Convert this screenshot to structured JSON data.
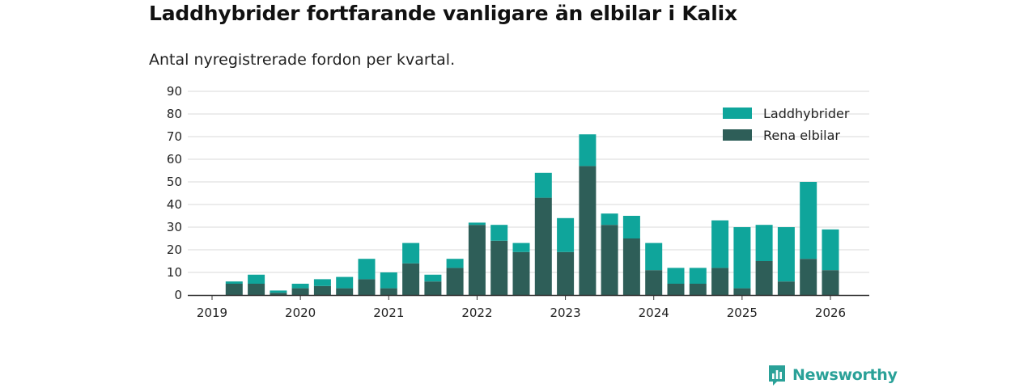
{
  "chart_data": {
    "type": "bar",
    "stacked": true,
    "title": "Laddhybrider fortfarande vanligare än elbilar i Kalix",
    "subtitle": "Antal nyregistrerade fordon per kvartal.",
    "ylim": [
      0,
      90
    ],
    "yticks": [
      0,
      10,
      20,
      30,
      40,
      50,
      60,
      70,
      80,
      90
    ],
    "xticks": [
      "2019",
      "2020",
      "2021",
      "2022",
      "2023",
      "2024",
      "2025",
      "2026"
    ],
    "x": [
      "2019-Q2",
      "2019-Q3",
      "2019-Q4",
      "2020-Q1",
      "2020-Q2",
      "2020-Q3",
      "2020-Q4",
      "2021-Q1",
      "2021-Q2",
      "2021-Q3",
      "2021-Q4",
      "2022-Q1",
      "2022-Q2",
      "2022-Q3",
      "2022-Q4",
      "2023-Q1",
      "2023-Q2",
      "2023-Q3",
      "2023-Q4",
      "2024-Q1",
      "2024-Q2",
      "2024-Q3",
      "2024-Q4",
      "2025-Q1",
      "2025-Q2",
      "2025-Q3",
      "2025-Q4",
      "2026-Q1"
    ],
    "series": [
      {
        "name": "Rena elbilar",
        "color": "#2e5e58",
        "values": [
          5,
          5,
          1,
          3,
          4,
          3,
          7,
          3,
          14,
          6,
          12,
          31,
          24,
          19,
          43,
          19,
          57,
          31,
          25,
          11,
          5,
          5,
          12,
          3,
          15,
          6,
          16,
          11
        ]
      },
      {
        "name": "Laddhybrider",
        "color": "#0fa59b",
        "values": [
          1,
          4,
          1,
          2,
          3,
          5,
          9,
          7,
          9,
          3,
          4,
          1,
          7,
          4,
          11,
          15,
          14,
          5,
          10,
          12,
          7,
          7,
          21,
          27,
          16,
          24,
          34,
          18
        ]
      }
    ],
    "legend": {
      "position": "top-right",
      "entries": [
        "Laddhybrider",
        "Rena elbilar"
      ]
    },
    "grid": true
  },
  "brand": {
    "name": "Newsworthy",
    "color": "#2aa198"
  }
}
